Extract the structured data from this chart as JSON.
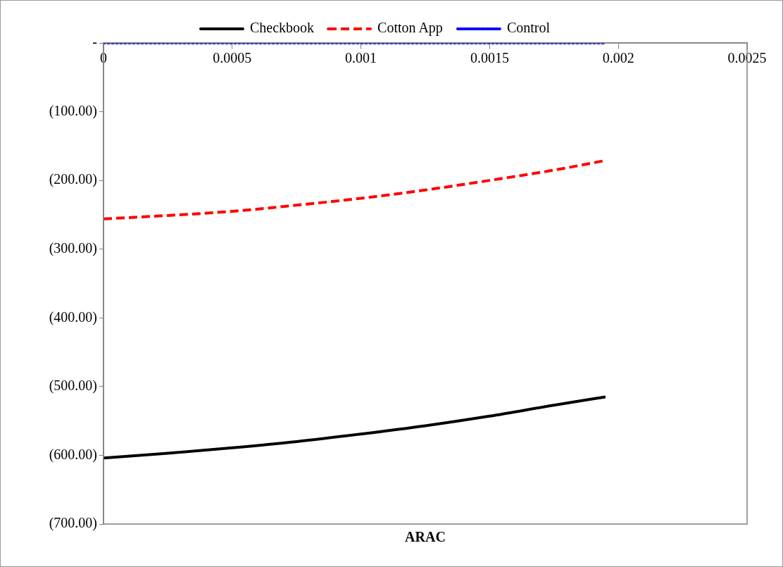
{
  "chart_data": {
    "type": "line",
    "xlabel": "ARAC",
    "legend": "top",
    "grid": false,
    "marker": "none",
    "xlim": [
      0,
      0.0025
    ],
    "xticks": [
      0,
      0.0005,
      0.001,
      0.0015,
      0.002,
      0.0025
    ],
    "ylim": [
      -700,
      0
    ],
    "yticks": [
      {
        "value": 0,
        "label": "-"
      },
      {
        "value": -100,
        "label": "(100.00)"
      },
      {
        "value": -200,
        "label": "(200.00)"
      },
      {
        "value": -300,
        "label": "(300.00)"
      },
      {
        "value": -400,
        "label": "(400.00)"
      },
      {
        "value": -500,
        "label": "(500.00)"
      },
      {
        "value": -600,
        "label": "(600.00)"
      },
      {
        "value": -700,
        "label": "(700.00)"
      }
    ],
    "x": [
      0,
      0.00025,
      0.0005,
      0.00075,
      0.001,
      0.00125,
      0.0015,
      0.00175,
      0.00195
    ],
    "series": [
      {
        "name": "Checkbook",
        "color": "#000000",
        "line_style": "solid",
        "values": [
          -604,
          -597,
          -589,
          -580,
          -569,
          -557,
          -543,
          -527,
          -515
        ]
      },
      {
        "name": "Cotton App",
        "color": "#ff0000",
        "line_style": "dashed",
        "values": [
          -256,
          -251,
          -245,
          -236,
          -226,
          -214,
          -200,
          -185,
          -171
        ]
      },
      {
        "name": "Control",
        "color": "#0000ff",
        "line_style": "dotted",
        "values": [
          0,
          0,
          0,
          0,
          0,
          0,
          0,
          0,
          0
        ]
      }
    ]
  }
}
